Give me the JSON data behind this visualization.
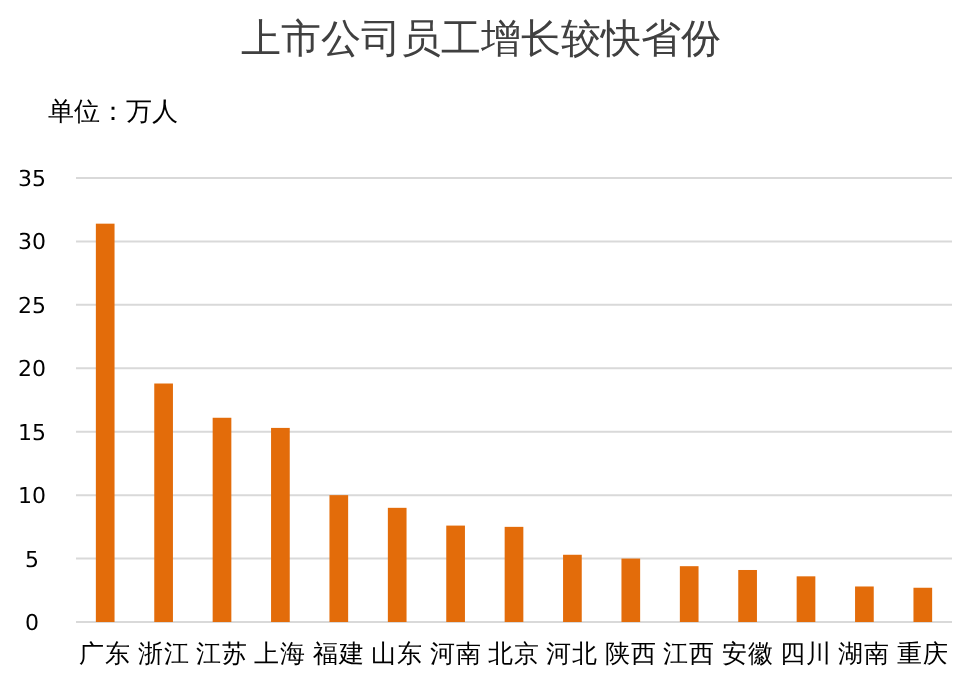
{
  "chart_data": {
    "type": "bar",
    "title": "上市公司员工增长较快省份",
    "ylabel": "单位：万人",
    "categories": [
      "广东",
      "浙江",
      "江苏",
      "上海",
      "福建",
      "山东",
      "河南",
      "北京",
      "河北",
      "陕西",
      "江西",
      "安徽",
      "四川",
      "湖南",
      "重庆"
    ],
    "values": [
      31.4,
      18.8,
      16.1,
      15.3,
      10.0,
      9.0,
      7.6,
      7.5,
      5.3,
      5.0,
      4.4,
      4.1,
      3.6,
      2.8,
      2.7
    ],
    "color": "#e36c0a",
    "ylim": [
      0,
      35
    ],
    "yticks": [
      0,
      5,
      10,
      15,
      20,
      25,
      30,
      35
    ],
    "grid": "y"
  }
}
